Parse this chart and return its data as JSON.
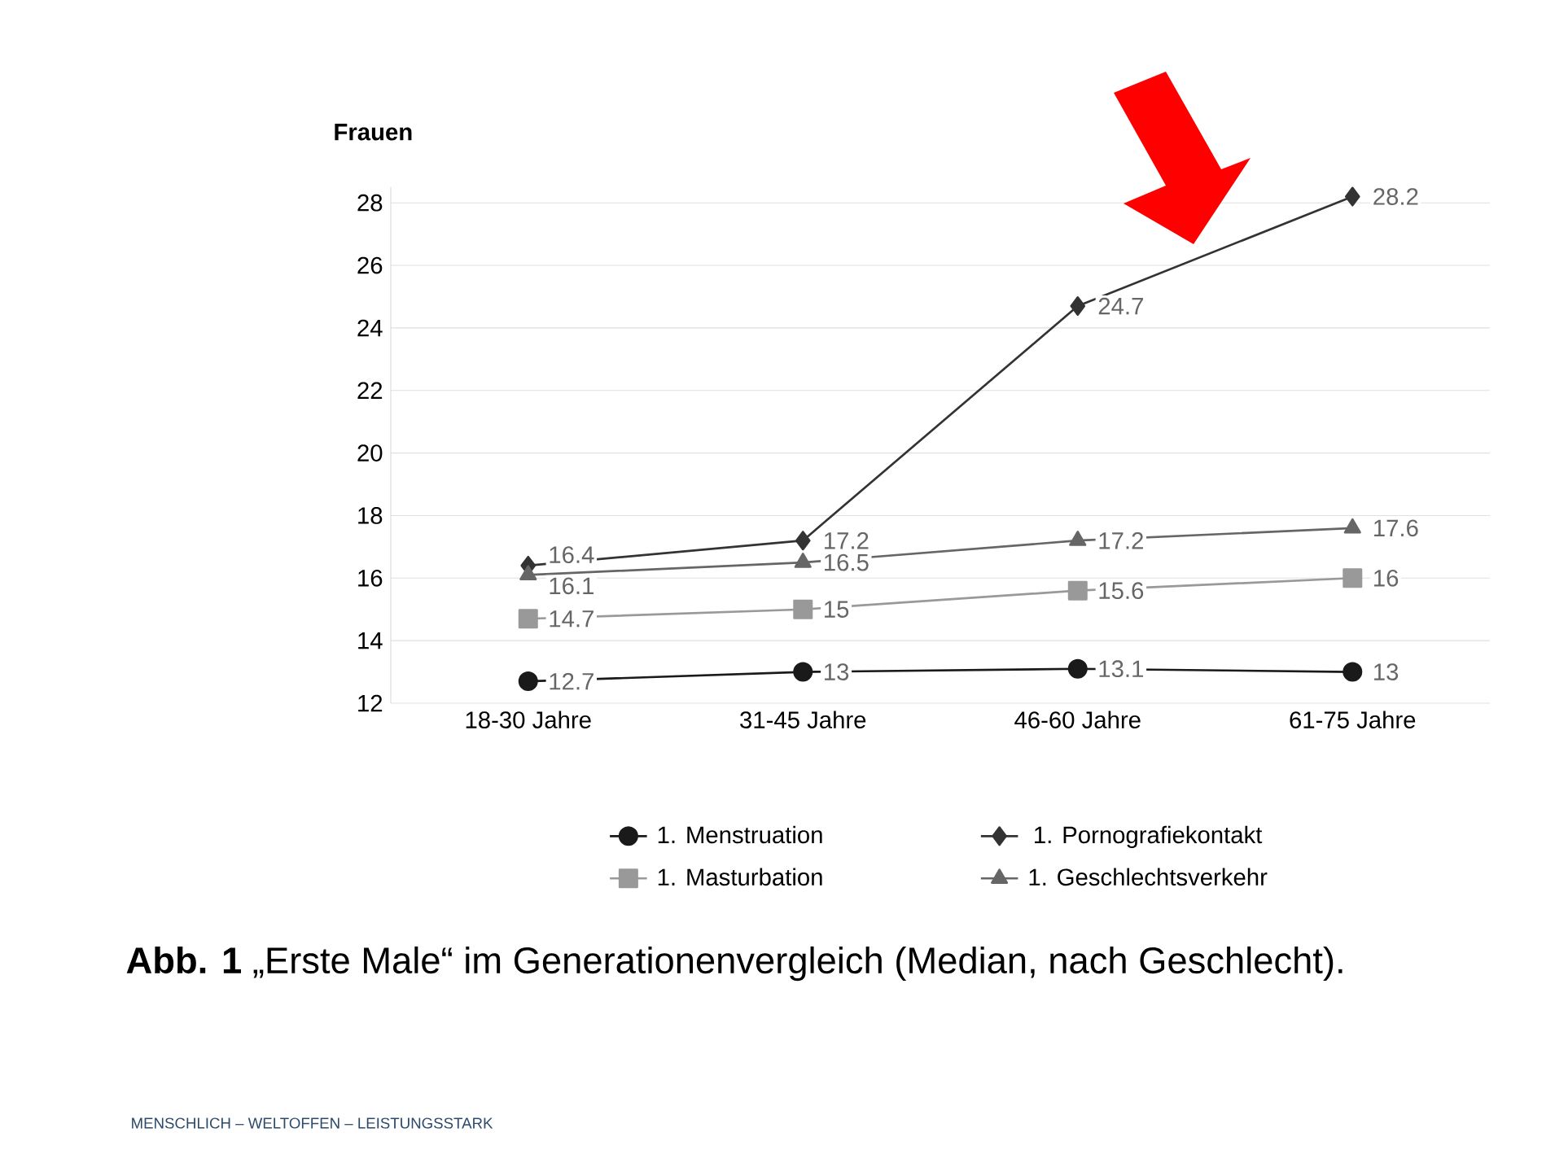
{
  "chart_data": {
    "type": "line",
    "title": "Frauen",
    "categories": [
      "18-30 Jahre",
      "31-45 Jahre",
      "46-60 Jahre",
      "61-75 Jahre"
    ],
    "series": [
      {
        "name": "1. Menstruation",
        "color": "#1a1a1a",
        "marker": "circle",
        "values": [
          12.7,
          13,
          13.1,
          13
        ]
      },
      {
        "name": "1. Pornografiekontakt",
        "color": "#333333",
        "marker": "diamond",
        "values": [
          16.4,
          17.2,
          24.7,
          28.2
        ]
      },
      {
        "name": "1. Masturbation",
        "color": "#999999",
        "marker": "square",
        "values": [
          14.7,
          15,
          15.6,
          16
        ]
      },
      {
        "name": "1. Geschlechtsverkehr",
        "color": "#666666",
        "marker": "triangle",
        "values": [
          16.1,
          16.5,
          17.2,
          17.6
        ]
      }
    ],
    "ylim": [
      12,
      28.5
    ],
    "yticks": [
      12,
      14,
      16,
      18,
      20,
      22,
      24,
      26,
      28
    ],
    "grid": "y",
    "legend": "bottom",
    "data_labels": true,
    "annotations": [
      "**Abb. 1** „Erste Male“ im Generationenvergleich (Median, nach Geschlecht).",
      "MENSCHLICH – WELTOFFEN – LEISTUNGSSTARK"
    ]
  }
}
